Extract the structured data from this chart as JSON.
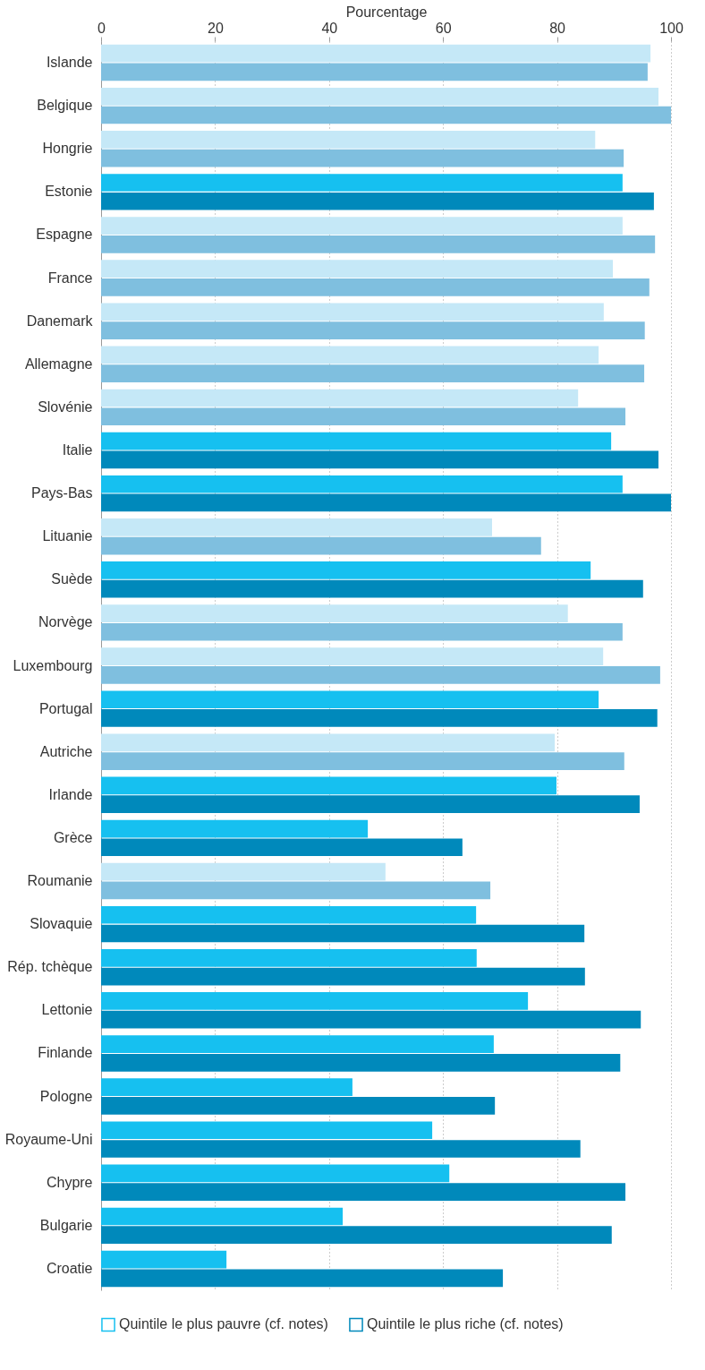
{
  "chart_data": {
    "type": "bar",
    "orientation": "horizontal",
    "xlabel": "Pourcentage",
    "categories": [
      "Islande",
      "Belgique",
      "Hongrie",
      "Estonie",
      "Espagne",
      "France",
      "Danemark",
      "Allemagne",
      "Slovénie",
      "Italie",
      "Pays-Bas",
      "Lituanie",
      "Suède",
      "Norvège",
      "Luxembourg",
      "Portugal",
      "Autriche",
      "Irlande",
      "Grèce",
      "Roumanie",
      "Slovaquie",
      "Rép. tchèque",
      "Lettonie",
      "Finlande",
      "Pologne",
      "Royaume-Uni",
      "Chypre",
      "Bulgarie",
      "Croatie"
    ],
    "series": [
      {
        "name": "Quintile le plus pauvre (cf. notes)",
        "color": "#16c0f0",
        "values": [
          96.4,
          97.8,
          86.7,
          91.5,
          91.5,
          89.8,
          88.2,
          87.3,
          83.7,
          89.5,
          91.5,
          68.6,
          85.9,
          81.9,
          88.1,
          87.3,
          79.6,
          79.9,
          46.8,
          49.9,
          65.8,
          65.9,
          74.9,
          68.9,
          44.1,
          58.1,
          61.1,
          42.4,
          22.0
        ],
        "colors": [
          "#c5e8f7",
          "#c5e8f7",
          "#c5e8f7",
          "#16c0f0",
          "#c5e8f7",
          "#c5e8f7",
          "#c5e8f7",
          "#c5e8f7",
          "#c5e8f7",
          "#16c0f0",
          "#16c0f0",
          "#c5e8f7",
          "#16c0f0",
          "#c5e8f7",
          "#c5e8f7",
          "#16c0f0",
          "#c5e8f7",
          "#16c0f0",
          "#16c0f0",
          "#c5e8f7",
          "#16c0f0",
          "#16c0f0",
          "#16c0f0",
          "#16c0f0",
          "#16c0f0",
          "#16c0f0",
          "#16c0f0",
          "#16c0f0",
          "#16c0f0"
        ]
      },
      {
        "name": "Quintile le plus riche (cf. notes)",
        "color": "#0089bb",
        "values": [
          95.9,
          100,
          91.7,
          97.0,
          97.2,
          96.2,
          95.4,
          95.3,
          92.0,
          97.8,
          100,
          77.2,
          95.1,
          91.5,
          98.1,
          97.6,
          91.8,
          94.5,
          63.4,
          68.3,
          84.8,
          84.9,
          94.7,
          91.1,
          69.1,
          84.1,
          92.0,
          89.6,
          70.5
        ],
        "colors": [
          "#7fbfdf",
          "#7fbfdf",
          "#7fbfdf",
          "#0089bb",
          "#7fbfdf",
          "#7fbfdf",
          "#7fbfdf",
          "#7fbfdf",
          "#7fbfdf",
          "#0089bb",
          "#0089bb",
          "#7fbfdf",
          "#0089bb",
          "#7fbfdf",
          "#7fbfdf",
          "#0089bb",
          "#7fbfdf",
          "#0089bb",
          "#0089bb",
          "#7fbfdf",
          "#0089bb",
          "#0089bb",
          "#0089bb",
          "#0089bb",
          "#0089bb",
          "#0089bb",
          "#0089bb",
          "#0089bb",
          "#0089bb"
        ]
      }
    ],
    "xlim": [
      0,
      100
    ],
    "xticks": [
      0,
      20,
      40,
      60,
      80,
      100
    ],
    "grid": "x",
    "legend": "bottom"
  }
}
